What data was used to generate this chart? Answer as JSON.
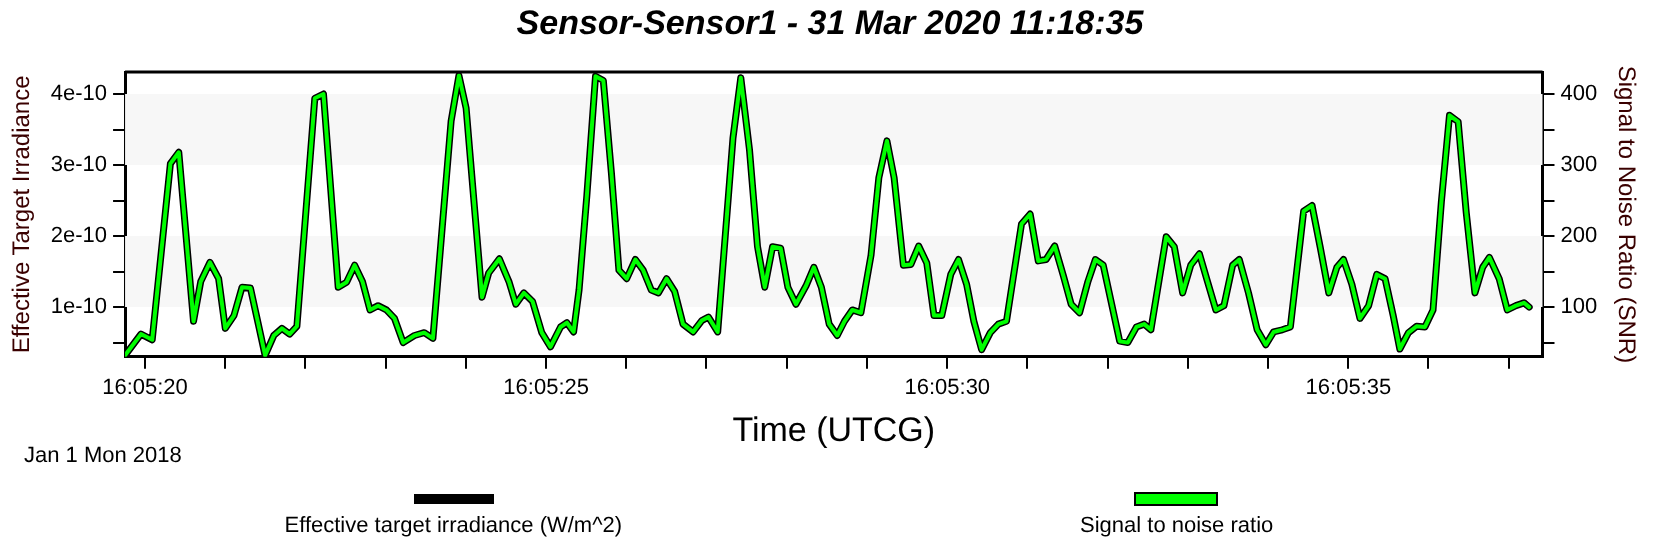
{
  "chart_data": {
    "type": "line",
    "title": "Sensor-Sensor1 - 31 Mar 2020 11:18:35",
    "xlabel": "Time (UTCG)",
    "ylabel": "Effective Target Irradiance",
    "y2label": "Signal to Noise Ratio (SNR)",
    "annotations": [
      "Jan 1 Mon 2018"
    ],
    "x": [
      16.08882,
      16.088875,
      16.088914,
      16.088977,
      16.089006,
      16.089057,
      16.089082,
      16.089114,
      16.089144,
      16.089167,
      16.089197,
      16.089225,
      16.089254,
      16.089305,
      16.089335,
      16.089363,
      16.08939,
      16.089415,
      16.089477,
      16.089507,
      16.089558,
      16.089587,
      16.089615,
      16.089642,
      16.089668,
      16.089696,
      16.089725,
      16.089753,
      16.089783,
      16.089822,
      16.089856,
      16.089886,
      16.089949,
      16.089976,
      16.090001,
      16.090056,
      16.090079,
      16.090116,
      16.09015,
      16.090173,
      16.090201,
      16.090231,
      16.090263,
      16.090293,
      16.090328,
      16.09035,
      16.090373,
      16.090392,
      16.090419,
      16.090449,
      16.090476,
      16.090504,
      16.09053,
      16.090557,
      16.090587,
      16.090614,
      16.090642,
      16.090667,
      16.090695,
      16.090723,
      16.090752,
      16.090787,
      16.090817,
      16.09084,
      16.090872,
      16.090925,
      16.090952,
      16.090982,
      16.09101,
      16.091035,
      16.091062,
      16.09109,
      16.091115,
      16.091143,
      16.091178,
      16.091205,
      16.091231,
      16.091258,
      16.091286,
      16.091311,
      16.091338,
      16.091368,
      16.091403,
      16.09143,
      16.091458,
      16.091483,
      16.091515,
      16.091541,
      16.091568,
      16.091596,
      16.091621,
      16.091648,
      16.091679,
      16.091706,
      16.091734,
      16.091759,
      16.091786,
      16.091816,
      16.091844,
      16.091872,
      16.091924,
      16.091954,
      16.091982,
      16.092009,
      16.092039,
      16.092069,
      16.092096,
      16.092125,
      16.092154,
      16.09218,
      16.092207,
      16.092264,
      16.092292,
      16.092322,
      16.092349,
      16.092372,
      16.092425,
      16.092453,
      16.092482,
      16.09251,
      16.09254,
      16.092568,
      16.092597,
      16.092625,
      16.092655,
      16.092678,
      16.09271,
      16.09274,
      16.09277,
      16.092797,
      16.092827,
      16.092855,
      16.092901,
      16.09293,
      16.092958,
      16.092988,
      16.093016,
      16.093039,
      16.093068,
      16.093096,
      16.093126,
      16.093154,
      16.093183,
      16.093211,
      16.093234,
      16.093264,
      16.093292,
      16.093321,
      16.093349,
      16.093378,
      16.093406,
      16.093436,
      16.093464,
      16.093494,
      16.093521,
      16.093544,
      16.093578,
      16.093606,
      16.093636,
      16.093664,
      16.093682
    ],
    "series": [
      {
        "name": "Effective target irradiance (W/m^2)",
        "color": "#000000",
        "values": [
          3.2e-11,
          6.2e-11,
          5.4e-11,
          3.02e-10,
          3.18e-10,
          8e-11,
          1.36e-10,
          1.63e-10,
          1.4e-10,
          7e-11,
          8.8e-11,
          1.28e-10,
          1.27e-10,
          3.2e-11,
          6e-11,
          7e-11,
          6.2e-11,
          7.3e-11,
          3.94e-10,
          4e-10,
          1.28e-10,
          1.35e-10,
          1.59e-10,
          1.36e-10,
          9.6e-11,
          1.02e-10,
          9.6e-11,
          8.4e-11,
          5e-11,
          6e-11,
          6.4e-11,
          5.6e-11,
          3.62e-10,
          4.26e-10,
          3.8e-10,
          1.14e-10,
          1.48e-10,
          1.68e-10,
          1.35e-10,
          1.04e-10,
          1.2e-10,
          1.08e-10,
          6.4e-11,
          4.4e-11,
          7.2e-11,
          7.8e-11,
          6.5e-11,
          1.24e-10,
          2.57e-10,
          4.25e-10,
          4.19e-10,
          2.89e-10,
          1.52e-10,
          1.4e-10,
          1.67e-10,
          1.52e-10,
          1.24e-10,
          1.2e-10,
          1.4e-10,
          1.22e-10,
          7.6e-11,
          6.5e-11,
          8.1e-11,
          8.6e-11,
          6.5e-11,
          3.38e-10,
          4.23e-10,
          3.22e-10,
          1.85e-10,
          1.28e-10,
          1.85e-10,
          1.83e-10,
          1.28e-10,
          1.04e-10,
          1.3e-10,
          1.56e-10,
          1.28e-10,
          7.6e-11,
          6e-11,
          8e-11,
          9.6e-11,
          9.2e-11,
          1.73e-10,
          2.82e-10,
          3.34e-10,
          2.82e-10,
          1.59e-10,
          1.6e-10,
          1.86e-10,
          1.62e-10,
          8.8e-11,
          8.8e-11,
          1.46e-10,
          1.67e-10,
          1.32e-10,
          8e-11,
          4e-11,
          6.4e-11,
          7.6e-11,
          8e-11,
          2.17e-10,
          2.31e-10,
          1.65e-10,
          1.67e-10,
          1.86e-10,
          1.44e-10,
          1.04e-10,
          9.2e-11,
          1.36e-10,
          1.67e-10,
          1.59e-10,
          5.2e-11,
          5e-11,
          7.2e-11,
          7.6e-11,
          6.8e-11,
          1.99e-10,
          1.85e-10,
          1.2e-10,
          1.59e-10,
          1.75e-10,
          1.36e-10,
          9.6e-11,
          1.02e-10,
          1.59e-10,
          1.67e-10,
          1.2e-10,
          6.8e-11,
          4.7e-11,
          6.5e-11,
          6.8e-11,
          7.2e-11,
          2.35e-10,
          2.43e-10,
          1.85e-10,
          1.2e-10,
          1.56e-10,
          1.67e-10,
          1.32e-10,
          8.4e-11,
          1.02e-10,
          1.46e-10,
          1.4e-10,
          8.8e-11,
          4.1e-11,
          6.4e-11,
          7.3e-11,
          7.2e-11,
          9.6e-11,
          2.49e-10,
          3.7e-10,
          3.61e-10,
          2.33e-10,
          1.2e-10,
          1.56e-10,
          1.7e-10,
          1.4e-10,
          9.6e-11,
          1.02e-10,
          1.06e-10,
          1e-10
        ]
      },
      {
        "name": "Signal to noise ratio",
        "color": "#00ff00",
        "axis": "y2",
        "values": [
          32,
          62,
          54,
          302,
          318,
          80,
          136,
          163,
          140,
          70,
          88,
          128,
          127,
          32,
          60,
          70,
          62,
          73,
          394,
          400,
          128,
          135,
          159,
          136,
          96,
          102,
          96,
          84,
          50,
          60,
          64,
          56,
          362,
          426,
          380,
          114,
          148,
          168,
          135,
          104,
          120,
          108,
          64,
          44,
          72,
          78,
          65,
          124,
          257,
          425,
          419,
          289,
          152,
          140,
          167,
          152,
          124,
          120,
          140,
          122,
          76,
          65,
          81,
          86,
          65,
          338,
          423,
          322,
          185,
          128,
          185,
          183,
          128,
          104,
          130,
          156,
          128,
          76,
          60,
          80,
          96,
          92,
          173,
          282,
          334,
          282,
          159,
          160,
          186,
          162,
          88,
          88,
          146,
          167,
          132,
          80,
          40,
          64,
          76,
          80,
          217,
          231,
          165,
          167,
          186,
          144,
          104,
          92,
          136,
          167,
          159,
          52,
          50,
          72,
          76,
          68,
          199,
          185,
          120,
          159,
          175,
          136,
          96,
          102,
          159,
          167,
          120,
          68,
          47,
          65,
          68,
          72,
          235,
          243,
          185,
          120,
          156,
          167,
          132,
          84,
          102,
          146,
          140,
          88,
          41,
          64,
          73,
          72,
          96,
          249,
          370,
          361,
          233,
          120,
          156,
          170,
          140,
          96,
          102,
          106,
          100
        ]
      }
    ],
    "xlim": [
      16.08882,
      16.093728
    ],
    "xticks": [
      {
        "value": 16.088889,
        "label": "16:05:20"
      },
      {
        "value": 16.089167,
        "label": null
      },
      {
        "value": 16.089444,
        "label": null
      },
      {
        "value": 16.089722,
        "label": null
      },
      {
        "value": 16.09,
        "label": null
      },
      {
        "value": 16.090278,
        "label": "16:05:25"
      },
      {
        "value": 16.090556,
        "label": null
      },
      {
        "value": 16.090833,
        "label": null
      },
      {
        "value": 16.091111,
        "label": null
      },
      {
        "value": 16.091389,
        "label": null
      },
      {
        "value": 16.091667,
        "label": "16:05:30"
      },
      {
        "value": 16.091944,
        "label": null
      },
      {
        "value": 16.092222,
        "label": null
      },
      {
        "value": 16.0925,
        "label": null
      },
      {
        "value": 16.092778,
        "label": null
      },
      {
        "value": 16.093056,
        "label": "16:05:35"
      },
      {
        "value": 16.093333,
        "label": null
      },
      {
        "value": 16.093611,
        "label": null
      }
    ],
    "ylim": [
      3e-11,
      4.31e-10
    ],
    "yticks": [
      {
        "value": 5e-11,
        "label": null
      },
      1e-10,
      {
        "value": 1.5e-10,
        "label": null
      },
      2e-10,
      {
        "value": 2.5e-10,
        "label": null
      },
      3e-10,
      {
        "value": 3.5e-10,
        "label": null
      },
      4e-10
    ],
    "y2lim": [
      30,
      431
    ],
    "y2ticks": [
      {
        "value": 50,
        "label": null
      },
      100,
      {
        "value": 150,
        "label": null
      },
      200,
      {
        "value": 250,
        "label": null
      },
      300,
      {
        "value": 350,
        "label": null
      },
      400
    ],
    "bands": [
      {
        "axis": "y",
        "from": 1e-10,
        "to": 2e-10,
        "color": "#f7f7f7"
      },
      {
        "axis": "y",
        "from": 3e-10,
        "to": 4e-10,
        "color": "#f7f7f7"
      }
    ],
    "grid": false,
    "legend": "bottom",
    "marker": "none",
    "line_style": "solid"
  }
}
